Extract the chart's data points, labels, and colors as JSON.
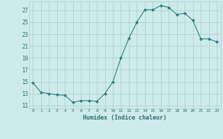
{
  "x": [
    0,
    1,
    2,
    3,
    4,
    5,
    6,
    7,
    8,
    9,
    10,
    11,
    12,
    13,
    14,
    15,
    16,
    17,
    18,
    19,
    20,
    21,
    22,
    23
  ],
  "y": [
    14.8,
    13.2,
    13.0,
    12.8,
    12.7,
    11.5,
    11.8,
    11.8,
    11.7,
    13.0,
    15.0,
    19.0,
    22.3,
    25.0,
    27.1,
    27.1,
    27.8,
    27.5,
    26.3,
    26.5,
    25.3,
    22.2,
    22.2,
    21.7
  ],
  "xlabel": "Humidex (Indice chaleur)",
  "bg_color": "#ceeaea",
  "line_color": "#2d7d7d",
  "grid_color": "#aacece",
  "text_color": "#2d6e6e",
  "xlim": [
    -0.5,
    23.5
  ],
  "ylim": [
    10.5,
    28.5
  ],
  "yticks": [
    11,
    13,
    15,
    17,
    19,
    21,
    23,
    25,
    27
  ],
  "xtick_labels": [
    "0",
    "1",
    "2",
    "3",
    "4",
    "5",
    "6",
    "7",
    "8",
    "9",
    "10",
    "11",
    "12",
    "13",
    "14",
    "15",
    "16",
    "17",
    "18",
    "19",
    "20",
    "21",
    "22",
    "23"
  ],
  "marker": "D",
  "markersize": 2.0,
  "linewidth": 0.8
}
